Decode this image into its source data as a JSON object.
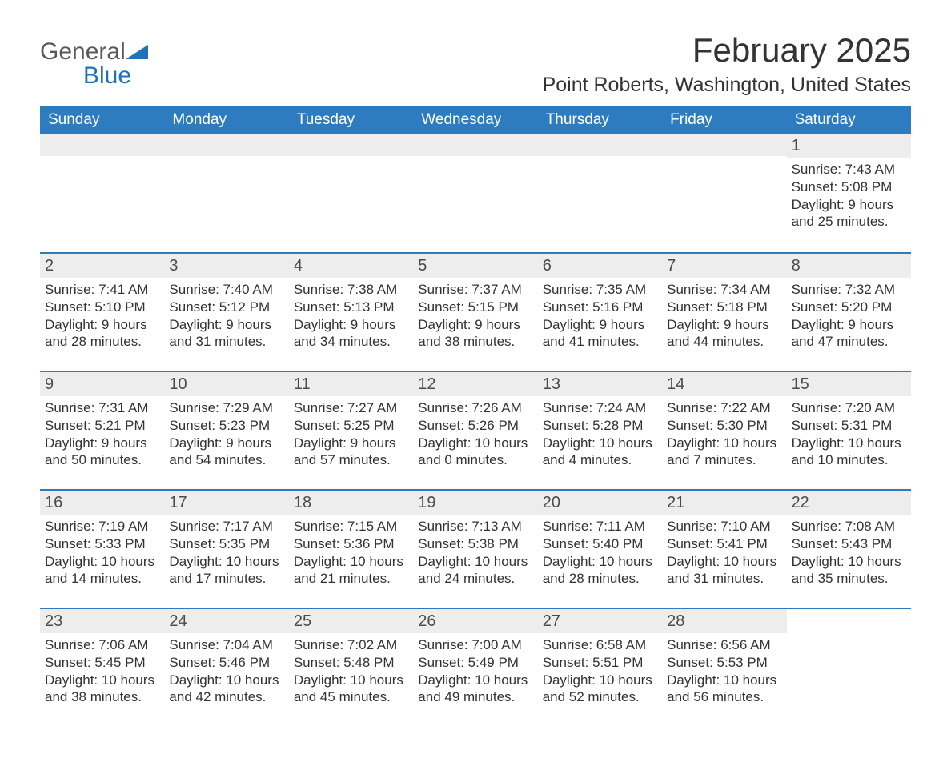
{
  "brand": {
    "name_part1": "General",
    "name_part2": "Blue",
    "color_general": "#5a5a5a",
    "color_blue": "#2072b8",
    "icon_fill": "#2072b8"
  },
  "header": {
    "month_title": "February 2025",
    "location": "Point Roberts, Washington, United States"
  },
  "colors": {
    "header_bg": "#2d7cc0",
    "header_text": "#ffffff",
    "week_divider": "#2d7cc0",
    "daynum_bg": "#ededed",
    "body_text": "#333333",
    "page_bg": "#ffffff"
  },
  "typography": {
    "title_fontsize": 42,
    "location_fontsize": 25,
    "dayheader_fontsize": 19,
    "daynum_fontsize": 20,
    "body_fontsize": 17
  },
  "day_names": [
    "Sunday",
    "Monday",
    "Tuesday",
    "Wednesday",
    "Thursday",
    "Friday",
    "Saturday"
  ],
  "weeks": [
    [
      null,
      null,
      null,
      null,
      null,
      null,
      {
        "num": "1",
        "sunrise": "7:43 AM",
        "sunset": "5:08 PM",
        "daylight": "9 hours and 25 minutes."
      }
    ],
    [
      {
        "num": "2",
        "sunrise": "7:41 AM",
        "sunset": "5:10 PM",
        "daylight": "9 hours and 28 minutes."
      },
      {
        "num": "3",
        "sunrise": "7:40 AM",
        "sunset": "5:12 PM",
        "daylight": "9 hours and 31 minutes."
      },
      {
        "num": "4",
        "sunrise": "7:38 AM",
        "sunset": "5:13 PM",
        "daylight": "9 hours and 34 minutes."
      },
      {
        "num": "5",
        "sunrise": "7:37 AM",
        "sunset": "5:15 PM",
        "daylight": "9 hours and 38 minutes."
      },
      {
        "num": "6",
        "sunrise": "7:35 AM",
        "sunset": "5:16 PM",
        "daylight": "9 hours and 41 minutes."
      },
      {
        "num": "7",
        "sunrise": "7:34 AM",
        "sunset": "5:18 PM",
        "daylight": "9 hours and 44 minutes."
      },
      {
        "num": "8",
        "sunrise": "7:32 AM",
        "sunset": "5:20 PM",
        "daylight": "9 hours and 47 minutes."
      }
    ],
    [
      {
        "num": "9",
        "sunrise": "7:31 AM",
        "sunset": "5:21 PM",
        "daylight": "9 hours and 50 minutes."
      },
      {
        "num": "10",
        "sunrise": "7:29 AM",
        "sunset": "5:23 PM",
        "daylight": "9 hours and 54 minutes."
      },
      {
        "num": "11",
        "sunrise": "7:27 AM",
        "sunset": "5:25 PM",
        "daylight": "9 hours and 57 minutes."
      },
      {
        "num": "12",
        "sunrise": "7:26 AM",
        "sunset": "5:26 PM",
        "daylight": "10 hours and 0 minutes."
      },
      {
        "num": "13",
        "sunrise": "7:24 AM",
        "sunset": "5:28 PM",
        "daylight": "10 hours and 4 minutes."
      },
      {
        "num": "14",
        "sunrise": "7:22 AM",
        "sunset": "5:30 PM",
        "daylight": "10 hours and 7 minutes."
      },
      {
        "num": "15",
        "sunrise": "7:20 AM",
        "sunset": "5:31 PM",
        "daylight": "10 hours and 10 minutes."
      }
    ],
    [
      {
        "num": "16",
        "sunrise": "7:19 AM",
        "sunset": "5:33 PM",
        "daylight": "10 hours and 14 minutes."
      },
      {
        "num": "17",
        "sunrise": "7:17 AM",
        "sunset": "5:35 PM",
        "daylight": "10 hours and 17 minutes."
      },
      {
        "num": "18",
        "sunrise": "7:15 AM",
        "sunset": "5:36 PM",
        "daylight": "10 hours and 21 minutes."
      },
      {
        "num": "19",
        "sunrise": "7:13 AM",
        "sunset": "5:38 PM",
        "daylight": "10 hours and 24 minutes."
      },
      {
        "num": "20",
        "sunrise": "7:11 AM",
        "sunset": "5:40 PM",
        "daylight": "10 hours and 28 minutes."
      },
      {
        "num": "21",
        "sunrise": "7:10 AM",
        "sunset": "5:41 PM",
        "daylight": "10 hours and 31 minutes."
      },
      {
        "num": "22",
        "sunrise": "7:08 AM",
        "sunset": "5:43 PM",
        "daylight": "10 hours and 35 minutes."
      }
    ],
    [
      {
        "num": "23",
        "sunrise": "7:06 AM",
        "sunset": "5:45 PM",
        "daylight": "10 hours and 38 minutes."
      },
      {
        "num": "24",
        "sunrise": "7:04 AM",
        "sunset": "5:46 PM",
        "daylight": "10 hours and 42 minutes."
      },
      {
        "num": "25",
        "sunrise": "7:02 AM",
        "sunset": "5:48 PM",
        "daylight": "10 hours and 45 minutes."
      },
      {
        "num": "26",
        "sunrise": "7:00 AM",
        "sunset": "5:49 PM",
        "daylight": "10 hours and 49 minutes."
      },
      {
        "num": "27",
        "sunrise": "6:58 AM",
        "sunset": "5:51 PM",
        "daylight": "10 hours and 52 minutes."
      },
      {
        "num": "28",
        "sunrise": "6:56 AM",
        "sunset": "5:53 PM",
        "daylight": "10 hours and 56 minutes."
      },
      null
    ]
  ],
  "labels": {
    "sunrise_prefix": "Sunrise: ",
    "sunset_prefix": "Sunset: ",
    "daylight_prefix": "Daylight: "
  }
}
